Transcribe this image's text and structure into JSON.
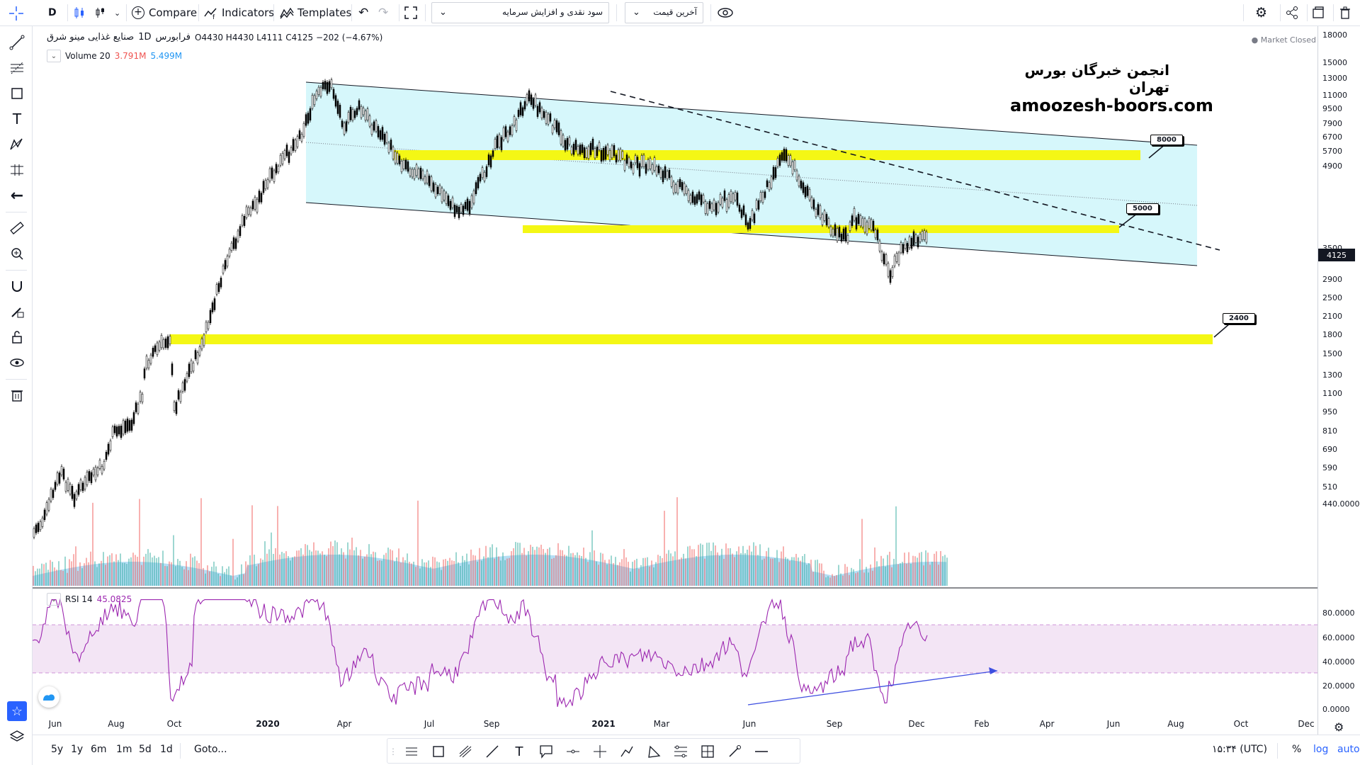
{
  "toolbar": {
    "interval": "D",
    "compare_label": "Compare",
    "indicators_label": "Indicators",
    "templates_label": "Templates",
    "dropdown_dividend": "سود نقدی و افزایش سرمایه",
    "dropdown_price": "آخرین قیمت"
  },
  "legend": {
    "symbol_name": "صنایع غذایی مینو شرق",
    "interval": "1D",
    "exchange": "فرابورس",
    "ohlc": "O4430 H4430 L4111 C4125 −202 (−4.67%)",
    "volume_label": "Volume 20",
    "volume_value": "3.791M",
    "volume_ma": "5.499M",
    "rsi_label": "RSI 14",
    "rsi_value": "45.0825",
    "market_status": "Market Closed"
  },
  "watermark": {
    "persian": "انجمن خبرگان بورس تهران",
    "site": "amoozesh-boors.com"
  },
  "annotations": [
    "8000",
    "5000",
    "2400"
  ],
  "price_scale": {
    "labels": [
      "18000",
      "15000",
      "13000",
      "11000",
      "9500",
      "7900",
      "6700",
      "5700",
      "4900",
      "4125",
      "3500",
      "2900",
      "2500",
      "2100",
      "1800",
      "1500",
      "1300",
      "1100",
      "950",
      "810",
      "690",
      "590",
      "510",
      "440.00000"
    ],
    "last_price": "4125",
    "rsi_labels": [
      "80.0000",
      "60.0000",
      "40.0000",
      "20.0000",
      "0.0000"
    ]
  },
  "time_axis": {
    "labels": [
      "Jun",
      "Aug",
      "Oct",
      "2020",
      "Apr",
      "Jul",
      "Sep",
      "2021",
      "Mar",
      "Jun",
      "Sep",
      "Dec",
      "Feb",
      "Apr",
      "Jun",
      "Aug",
      "Oct",
      "Dec"
    ],
    "bold": [
      "2020",
      "2021"
    ]
  },
  "bottom_bar": {
    "ranges": [
      "5y",
      "1y",
      "6m",
      "1m",
      "5d",
      "1d"
    ],
    "goto_label": "Goto...",
    "clock": "۱۵:۳۴ (UTC)",
    "percent": "%",
    "log": "log",
    "auto": "auto"
  },
  "colors": {
    "channel_fill": "#d6f7fb",
    "highlight": "#f4f715",
    "rsi_line": "#9c27b0",
    "rsi_band": "#f3e5f5",
    "volume_ma": "#5ab4e6",
    "divergence_line": "#3d4ee0",
    "accent": "#2962ff"
  }
}
